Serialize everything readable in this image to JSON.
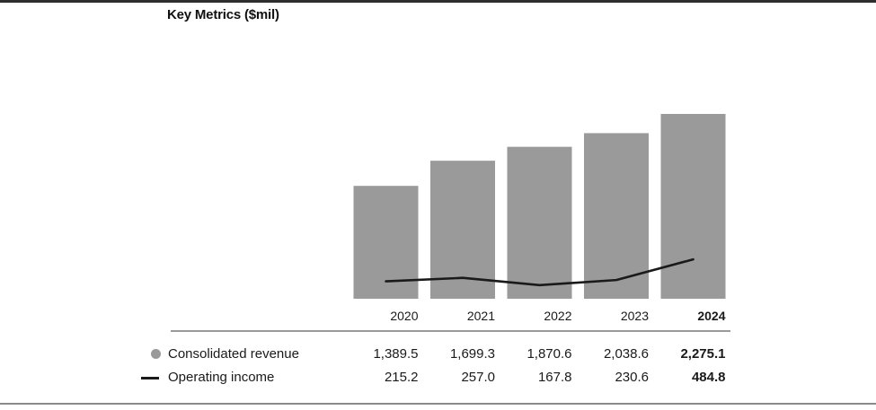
{
  "title": "Key Metrics ($mil)",
  "colors": {
    "bar": "#9a9a9a",
    "line": "#1a1a1a",
    "column_rule": "#9a9a9a",
    "top_border": "#2e2e2e",
    "bottom_border": "#8a8a8a",
    "background": "#ffffff"
  },
  "legend": {
    "revenue_label": "Consolidated revenue",
    "income_label": "Operating income"
  },
  "chart_data": {
    "type": "bar+line",
    "title": "Key Metrics ($mil)",
    "categories": [
      "2020",
      "2021",
      "2022",
      "2023",
      "2024"
    ],
    "series": [
      {
        "name": "Consolidated revenue",
        "type": "bar",
        "color": "#9a9a9a",
        "values": [
          1389.5,
          1699.3,
          1870.6,
          2038.6,
          2275.1
        ],
        "labels": [
          "1,389.5",
          "1,699.3",
          "1,870.6",
          "2,038.6",
          "2,275.1"
        ]
      },
      {
        "name": "Operating income",
        "type": "line",
        "color": "#1a1a1a",
        "values": [
          215.2,
          257.0,
          167.8,
          230.6,
          484.8
        ],
        "labels": [
          "215.2",
          "257.0",
          "167.8",
          "230.6",
          "484.8"
        ]
      }
    ],
    "ylim": [
      0,
      2275.1
    ],
    "grid": false,
    "legend_position": "bottom-left",
    "last_column_bold": true
  }
}
